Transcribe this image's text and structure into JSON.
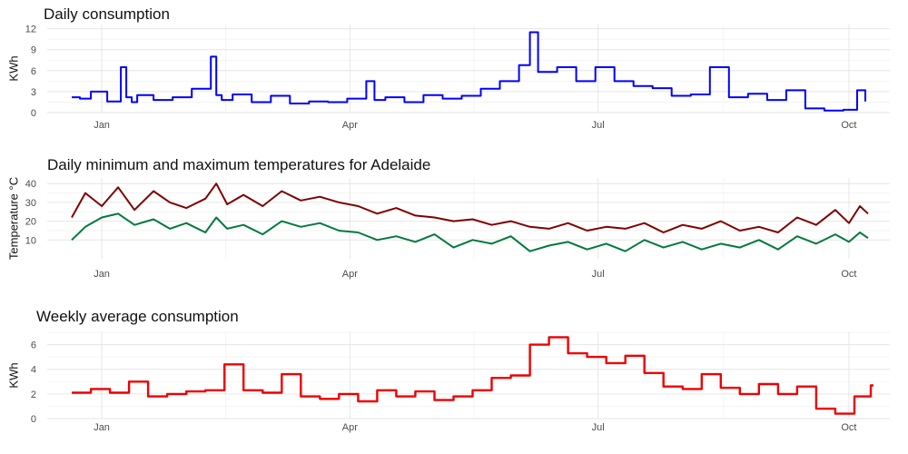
{
  "chart_data": [
    {
      "type": "line",
      "title": "Daily consumption",
      "ylabel": "KWh",
      "xlabel": "",
      "ylim": [
        0,
        12.6
      ],
      "yticks": [
        0,
        3,
        6,
        9,
        12
      ],
      "x_range": [
        "2019-12-12",
        "2020-10-16"
      ],
      "xticks": [
        {
          "date": "2020-01-01",
          "label": "Jan"
        },
        {
          "date": "2020-04-01",
          "label": "Apr"
        },
        {
          "date": "2020-07-01",
          "label": "Jul"
        },
        {
          "date": "2020-10-01",
          "label": "Oct"
        }
      ],
      "step": true,
      "grid": true,
      "series": [
        {
          "color": "#0000ff",
          "x": [
            "2019-12-21",
            "2019-12-24",
            "2019-12-28",
            "2020-01-03",
            "2020-01-08",
            "2020-01-10",
            "2020-01-12",
            "2020-01-14",
            "2020-01-20",
            "2020-01-27",
            "2020-02-03",
            "2020-02-10",
            "2020-02-12",
            "2020-02-14",
            "2020-02-18",
            "2020-02-25",
            "2020-03-03",
            "2020-03-10",
            "2020-03-17",
            "2020-03-24",
            "2020-03-31",
            "2020-04-07",
            "2020-04-10",
            "2020-04-14",
            "2020-04-21",
            "2020-04-28",
            "2020-05-05",
            "2020-05-12",
            "2020-05-19",
            "2020-05-26",
            "2020-06-02",
            "2020-06-06",
            "2020-06-09",
            "2020-06-16",
            "2020-06-23",
            "2020-06-30",
            "2020-07-07",
            "2020-07-14",
            "2020-07-21",
            "2020-07-28",
            "2020-08-04",
            "2020-08-11",
            "2020-08-18",
            "2020-08-25",
            "2020-09-01",
            "2020-09-08",
            "2020-09-15",
            "2020-09-22",
            "2020-09-29",
            "2020-10-04",
            "2020-10-07"
          ],
          "y": [
            2.2,
            2.0,
            3.0,
            1.6,
            6.5,
            2.2,
            1.5,
            2.5,
            1.8,
            2.2,
            3.4,
            8.0,
            2.5,
            1.8,
            2.6,
            1.5,
            2.4,
            1.3,
            1.6,
            1.5,
            2.0,
            4.5,
            1.8,
            2.2,
            1.5,
            2.5,
            2.0,
            2.4,
            3.4,
            4.5,
            6.8,
            11.5,
            5.8,
            6.5,
            4.5,
            6.5,
            4.5,
            3.8,
            3.5,
            2.4,
            2.6,
            6.5,
            2.2,
            2.7,
            1.8,
            3.2,
            0.6,
            0.3,
            0.4,
            3.2,
            1.6
          ]
        }
      ]
    },
    {
      "type": "line",
      "title": "Daily minimum and maximum temperatures for Adelaide",
      "ylabel": "Temperature °C",
      "xlabel": "",
      "ylim": [
        0,
        43
      ],
      "yticks": [
        10,
        20,
        30,
        40
      ],
      "x_range": [
        "2019-12-12",
        "2020-10-16"
      ],
      "xticks": [
        {
          "date": "2020-01-01",
          "label": "Jan"
        },
        {
          "date": "2020-04-01",
          "label": "Apr"
        },
        {
          "date": "2020-07-01",
          "label": "Jul"
        },
        {
          "date": "2020-10-01",
          "label": "Oct"
        }
      ],
      "grid": true,
      "series": [
        {
          "color": "#800000",
          "x": [
            "2019-12-21",
            "2019-12-26",
            "2020-01-01",
            "2020-01-07",
            "2020-01-13",
            "2020-01-20",
            "2020-01-26",
            "2020-02-01",
            "2020-02-08",
            "2020-02-12",
            "2020-02-16",
            "2020-02-22",
            "2020-02-29",
            "2020-03-07",
            "2020-03-14",
            "2020-03-21",
            "2020-03-28",
            "2020-04-04",
            "2020-04-11",
            "2020-04-18",
            "2020-04-25",
            "2020-05-02",
            "2020-05-09",
            "2020-05-16",
            "2020-05-23",
            "2020-05-30",
            "2020-06-06",
            "2020-06-13",
            "2020-06-20",
            "2020-06-27",
            "2020-07-04",
            "2020-07-11",
            "2020-07-18",
            "2020-07-25",
            "2020-08-01",
            "2020-08-08",
            "2020-08-15",
            "2020-08-22",
            "2020-08-29",
            "2020-09-05",
            "2020-09-12",
            "2020-09-19",
            "2020-09-26",
            "2020-10-01",
            "2020-10-05",
            "2020-10-08"
          ],
          "y": [
            22,
            35,
            28,
            38,
            26,
            36,
            30,
            27,
            32,
            40,
            29,
            34,
            28,
            36,
            31,
            33,
            30,
            28,
            24,
            27,
            23,
            22,
            20,
            21,
            18,
            20,
            17,
            16,
            19,
            15,
            17,
            16,
            19,
            14,
            18,
            16,
            20,
            15,
            17,
            14,
            22,
            18,
            26,
            19,
            28,
            24
          ]
        },
        {
          "color": "#007a3d",
          "x": [
            "2019-12-21",
            "2019-12-26",
            "2020-01-01",
            "2020-01-07",
            "2020-01-13",
            "2020-01-20",
            "2020-01-26",
            "2020-02-01",
            "2020-02-08",
            "2020-02-12",
            "2020-02-16",
            "2020-02-22",
            "2020-02-29",
            "2020-03-07",
            "2020-03-14",
            "2020-03-21",
            "2020-03-28",
            "2020-04-04",
            "2020-04-11",
            "2020-04-18",
            "2020-04-25",
            "2020-05-02",
            "2020-05-09",
            "2020-05-16",
            "2020-05-23",
            "2020-05-30",
            "2020-06-06",
            "2020-06-13",
            "2020-06-20",
            "2020-06-27",
            "2020-07-04",
            "2020-07-11",
            "2020-07-18",
            "2020-07-25",
            "2020-08-01",
            "2020-08-08",
            "2020-08-15",
            "2020-08-22",
            "2020-08-29",
            "2020-09-05",
            "2020-09-12",
            "2020-09-19",
            "2020-09-26",
            "2020-10-01",
            "2020-10-05",
            "2020-10-08"
          ],
          "y": [
            10,
            17,
            22,
            24,
            18,
            21,
            16,
            19,
            14,
            22,
            16,
            18,
            13,
            20,
            17,
            19,
            15,
            14,
            10,
            12,
            9,
            13,
            6,
            10,
            8,
            12,
            4,
            7,
            9,
            5,
            8,
            4,
            10,
            6,
            9,
            5,
            8,
            6,
            10,
            5,
            12,
            8,
            13,
            9,
            14,
            11
          ]
        }
      ]
    },
    {
      "type": "line",
      "title": "Weekly average consumption",
      "ylabel": "KWh",
      "xlabel": "",
      "ylim": [
        0,
        7
      ],
      "yticks": [
        0,
        2,
        4,
        6
      ],
      "x_range": [
        "2019-12-12",
        "2020-10-16"
      ],
      "xticks": [
        {
          "date": "2020-01-01",
          "label": "Jan"
        },
        {
          "date": "2020-04-01",
          "label": "Apr"
        },
        {
          "date": "2020-07-01",
          "label": "Jul"
        },
        {
          "date": "2020-10-01",
          "label": "Oct"
        }
      ],
      "step": true,
      "grid": true,
      "series": [
        {
          "color": "#ee0000",
          "x": [
            "2019-12-21",
            "2019-12-28",
            "2020-01-04",
            "2020-01-11",
            "2020-01-18",
            "2020-01-25",
            "2020-02-01",
            "2020-02-08",
            "2020-02-15",
            "2020-02-22",
            "2020-02-29",
            "2020-03-07",
            "2020-03-14",
            "2020-03-21",
            "2020-03-28",
            "2020-04-04",
            "2020-04-11",
            "2020-04-18",
            "2020-04-25",
            "2020-05-02",
            "2020-05-09",
            "2020-05-16",
            "2020-05-23",
            "2020-05-30",
            "2020-06-06",
            "2020-06-13",
            "2020-06-20",
            "2020-06-27",
            "2020-07-04",
            "2020-07-11",
            "2020-07-18",
            "2020-07-25",
            "2020-08-01",
            "2020-08-08",
            "2020-08-15",
            "2020-08-22",
            "2020-08-29",
            "2020-09-05",
            "2020-09-12",
            "2020-09-19",
            "2020-09-26",
            "2020-10-03",
            "2020-10-09",
            "2020-10-10"
          ],
          "y": [
            2.1,
            2.4,
            2.1,
            3.0,
            1.8,
            2.0,
            2.2,
            2.3,
            4.4,
            2.3,
            2.1,
            3.6,
            1.8,
            1.6,
            2.0,
            1.4,
            2.3,
            1.8,
            2.2,
            1.5,
            1.8,
            2.3,
            3.3,
            3.5,
            6.0,
            6.6,
            5.3,
            5.0,
            4.5,
            5.1,
            3.7,
            2.6,
            2.4,
            3.6,
            2.5,
            2.0,
            2.8,
            2.0,
            2.6,
            0.8,
            0.4,
            1.8,
            2.7,
            2.7
          ]
        }
      ]
    }
  ]
}
